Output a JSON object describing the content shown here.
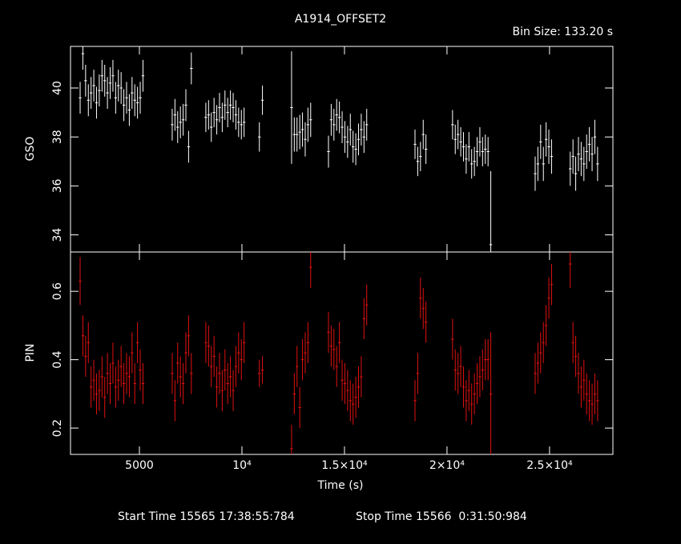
{
  "chart_data": [
    {
      "type": "errorbar",
      "title": "A1914_OFFSET2",
      "subtitle": "Bin Size: 133.20 s",
      "y_label": "GSO",
      "color": "#ffffff",
      "x": [
        2110,
        2243,
        2376,
        2510,
        2643,
        2776,
        2909,
        3042,
        3176,
        3309,
        3442,
        3575,
        3708,
        3842,
        3975,
        4108,
        4241,
        4374,
        4508,
        4641,
        4774,
        4907,
        5040,
        5174,
        6600,
        6733,
        6866,
        7000,
        7133,
        7266,
        7399,
        7532,
        8240,
        8373,
        8506,
        8640,
        8773,
        8906,
        9039,
        9172,
        9306,
        9439,
        9572,
        9705,
        9838,
        9972,
        10105,
        10850,
        11000,
        12420,
        12553,
        12686,
        12820,
        12953,
        13086,
        13219,
        13352,
        14220,
        14353,
        14486,
        14620,
        14753,
        14886,
        15019,
        15152,
        15286,
        15419,
        15552,
        15685,
        15818,
        15952,
        16085,
        18440,
        18573,
        18706,
        18840,
        18973,
        20270,
        20403,
        20536,
        20670,
        20803,
        20936,
        21069,
        21202,
        21336,
        21469,
        21602,
        21735,
        21868,
        22002,
        22135,
        24300,
        24433,
        24566,
        24700,
        24833,
        24966,
        25099,
        26010,
        26143,
        26276,
        26410,
        26543,
        26676,
        26809,
        26942,
        27076,
        27209,
        27342
      ],
      "values": [
        39.6,
        41.4,
        40.3,
        39.5,
        39.8,
        40.1,
        39.4,
        39.9,
        40.5,
        40.3,
        39.8,
        40.2,
        40.5,
        39.6,
        40.1,
        40.0,
        39.3,
        39.6,
        39.1,
        39.8,
        39.5,
        39.4,
        39.6,
        40.5,
        38.5,
        38.9,
        38.4,
        38.6,
        38.7,
        39.3,
        37.6,
        40.8,
        38.8,
        38.9,
        38.4,
        39.0,
        38.7,
        39.2,
        38.8,
        39.3,
        39.0,
        39.3,
        39.2,
        38.9,
        38.6,
        38.5,
        38.6,
        38.0,
        39.5,
        39.2,
        38.1,
        38.1,
        38.2,
        38.3,
        37.9,
        38.5,
        38.7,
        37.4,
        38.7,
        38.5,
        38.9,
        38.8,
        38.4,
        38.0,
        37.8,
        38.3,
        37.6,
        37.5,
        37.9,
        38.3,
        38.0,
        38.5,
        37.7,
        37.0,
        37.2,
        38.1,
        37.5,
        38.5,
        37.9,
        38.1,
        37.8,
        37.6,
        37.1,
        37.6,
        36.9,
        37.0,
        37.4,
        37.8,
        37.4,
        37.5,
        37.4,
        33.6,
        36.5,
        36.9,
        37.8,
        36.9,
        37.9,
        37.6,
        37.2,
        36.7,
        37.2,
        36.5,
        37.3,
        37.1,
        36.9,
        37.4,
        37.7,
        37.3,
        38.0,
        36.9
      ],
      "errors": [
        0.65,
        0.65,
        0.65,
        0.65,
        0.65,
        0.65,
        0.65,
        0.65,
        0.65,
        0.65,
        0.65,
        0.65,
        0.65,
        0.65,
        0.65,
        0.65,
        0.65,
        0.65,
        0.65,
        0.65,
        0.65,
        0.65,
        0.65,
        0.65,
        0.65,
        0.65,
        0.65,
        0.65,
        0.65,
        0.65,
        0.65,
        0.65,
        0.6,
        0.6,
        0.6,
        0.6,
        0.6,
        0.6,
        0.6,
        0.6,
        0.6,
        0.6,
        0.6,
        0.6,
        0.6,
        0.6,
        0.6,
        0.6,
        0.6,
        2.3,
        0.7,
        0.7,
        0.7,
        0.7,
        0.7,
        0.7,
        0.7,
        0.65,
        0.65,
        0.65,
        0.65,
        0.65,
        0.65,
        0.65,
        0.65,
        0.65,
        0.65,
        0.65,
        0.65,
        0.65,
        0.65,
        0.65,
        0.6,
        0.6,
        0.6,
        0.6,
        0.6,
        0.6,
        0.6,
        0.6,
        0.6,
        0.6,
        0.6,
        0.6,
        0.6,
        0.6,
        0.6,
        0.6,
        0.6,
        0.6,
        0.6,
        3.0,
        0.7,
        0.7,
        0.7,
        0.7,
        0.7,
        0.7,
        0.7,
        0.7,
        0.7,
        0.7,
        0.7,
        0.7,
        0.7,
        0.7,
        0.7,
        0.7,
        0.7,
        0.7
      ],
      "xlim": [
        1640,
        28090
      ],
      "ylim": [
        33.3,
        41.7
      ],
      "yticks": [
        34,
        36,
        38,
        40
      ]
    },
    {
      "type": "errorbar",
      "y_label": "PIN",
      "x_label": "Time (s)",
      "color": "#e01010",
      "x": [
        2110,
        2243,
        2376,
        2510,
        2643,
        2776,
        2909,
        3042,
        3176,
        3309,
        3442,
        3575,
        3708,
        3842,
        3975,
        4108,
        4241,
        4374,
        4508,
        4641,
        4774,
        4907,
        5040,
        5174,
        6600,
        6733,
        6866,
        7000,
        7133,
        7266,
        7399,
        7532,
        8240,
        8373,
        8506,
        8640,
        8773,
        8906,
        9039,
        9172,
        9306,
        9439,
        9572,
        9705,
        9838,
        9972,
        10105,
        10850,
        11000,
        12420,
        12553,
        12686,
        12820,
        12953,
        13086,
        13219,
        13352,
        14220,
        14353,
        14486,
        14620,
        14753,
        14886,
        15019,
        15152,
        15286,
        15419,
        15552,
        15685,
        15818,
        15952,
        16085,
        18440,
        18573,
        18706,
        18840,
        18973,
        20270,
        20403,
        20536,
        20670,
        20803,
        20936,
        21069,
        21202,
        21336,
        21469,
        21602,
        21735,
        21868,
        22002,
        22135,
        24300,
        24433,
        24566,
        24700,
        24833,
        24966,
        25099,
        26010,
        26143,
        26276,
        26410,
        26543,
        26676,
        26809,
        26942,
        27076,
        27209,
        27342
      ],
      "values": [
        0.63,
        0.47,
        0.41,
        0.45,
        0.32,
        0.34,
        0.3,
        0.31,
        0.35,
        0.29,
        0.36,
        0.33,
        0.39,
        0.32,
        0.34,
        0.38,
        0.33,
        0.36,
        0.35,
        0.42,
        0.33,
        0.45,
        0.37,
        0.33,
        0.36,
        0.28,
        0.39,
        0.35,
        0.33,
        0.42,
        0.47,
        0.36,
        0.45,
        0.44,
        0.38,
        0.41,
        0.32,
        0.36,
        0.31,
        0.37,
        0.33,
        0.35,
        0.31,
        0.38,
        0.42,
        0.4,
        0.45,
        0.36,
        0.37,
        0.14,
        0.3,
        0.38,
        0.26,
        0.4,
        0.42,
        0.45,
        0.67,
        0.48,
        0.44,
        0.43,
        0.38,
        0.45,
        0.34,
        0.33,
        0.31,
        0.28,
        0.27,
        0.29,
        0.32,
        0.35,
        0.52,
        0.56,
        0.28,
        0.36,
        0.58,
        0.55,
        0.51,
        0.46,
        0.37,
        0.36,
        0.38,
        0.32,
        0.28,
        0.31,
        0.27,
        0.3,
        0.33,
        0.35,
        0.37,
        0.4,
        0.4,
        0.3,
        0.36,
        0.39,
        0.42,
        0.45,
        0.5,
        0.58,
        0.62,
        0.68,
        0.45,
        0.41,
        0.36,
        0.32,
        0.34,
        0.3,
        0.28,
        0.27,
        0.3,
        0.28
      ],
      "errors": [
        0.07,
        0.06,
        0.06,
        0.06,
        0.06,
        0.06,
        0.06,
        0.06,
        0.06,
        0.06,
        0.06,
        0.06,
        0.06,
        0.06,
        0.06,
        0.06,
        0.06,
        0.06,
        0.06,
        0.06,
        0.06,
        0.06,
        0.06,
        0.06,
        0.06,
        0.06,
        0.06,
        0.06,
        0.06,
        0.06,
        0.06,
        0.06,
        0.06,
        0.06,
        0.06,
        0.06,
        0.06,
        0.06,
        0.06,
        0.06,
        0.06,
        0.06,
        0.06,
        0.06,
        0.06,
        0.06,
        0.06,
        0.04,
        0.04,
        0.07,
        0.06,
        0.06,
        0.06,
        0.06,
        0.06,
        0.06,
        0.06,
        0.06,
        0.06,
        0.06,
        0.06,
        0.06,
        0.06,
        0.06,
        0.06,
        0.06,
        0.06,
        0.06,
        0.06,
        0.06,
        0.06,
        0.06,
        0.06,
        0.06,
        0.06,
        0.06,
        0.06,
        0.06,
        0.06,
        0.06,
        0.06,
        0.06,
        0.06,
        0.06,
        0.06,
        0.06,
        0.06,
        0.06,
        0.06,
        0.06,
        0.06,
        0.18,
        0.06,
        0.06,
        0.06,
        0.06,
        0.06,
        0.06,
        0.06,
        0.07,
        0.06,
        0.06,
        0.06,
        0.06,
        0.06,
        0.06,
        0.06,
        0.06,
        0.06,
        0.06
      ],
      "xlim": [
        1640,
        28090
      ],
      "ylim": [
        0.123,
        0.715
      ],
      "yticks": [
        0.2,
        0.4,
        0.6
      ],
      "xticks": [
        5000,
        {
          "value": 10000,
          "label": "10⁴"
        },
        {
          "value": 15000,
          "label": "1.5×10⁴"
        },
        {
          "value": 20000,
          "label": "2×10⁴"
        },
        {
          "value": 25000,
          "label": "2.5×10⁴"
        }
      ]
    }
  ],
  "footer": {
    "start": "Start Time 15565 17:38:55:784",
    "stop": "Stop Time 15566  0:31:50:984"
  }
}
